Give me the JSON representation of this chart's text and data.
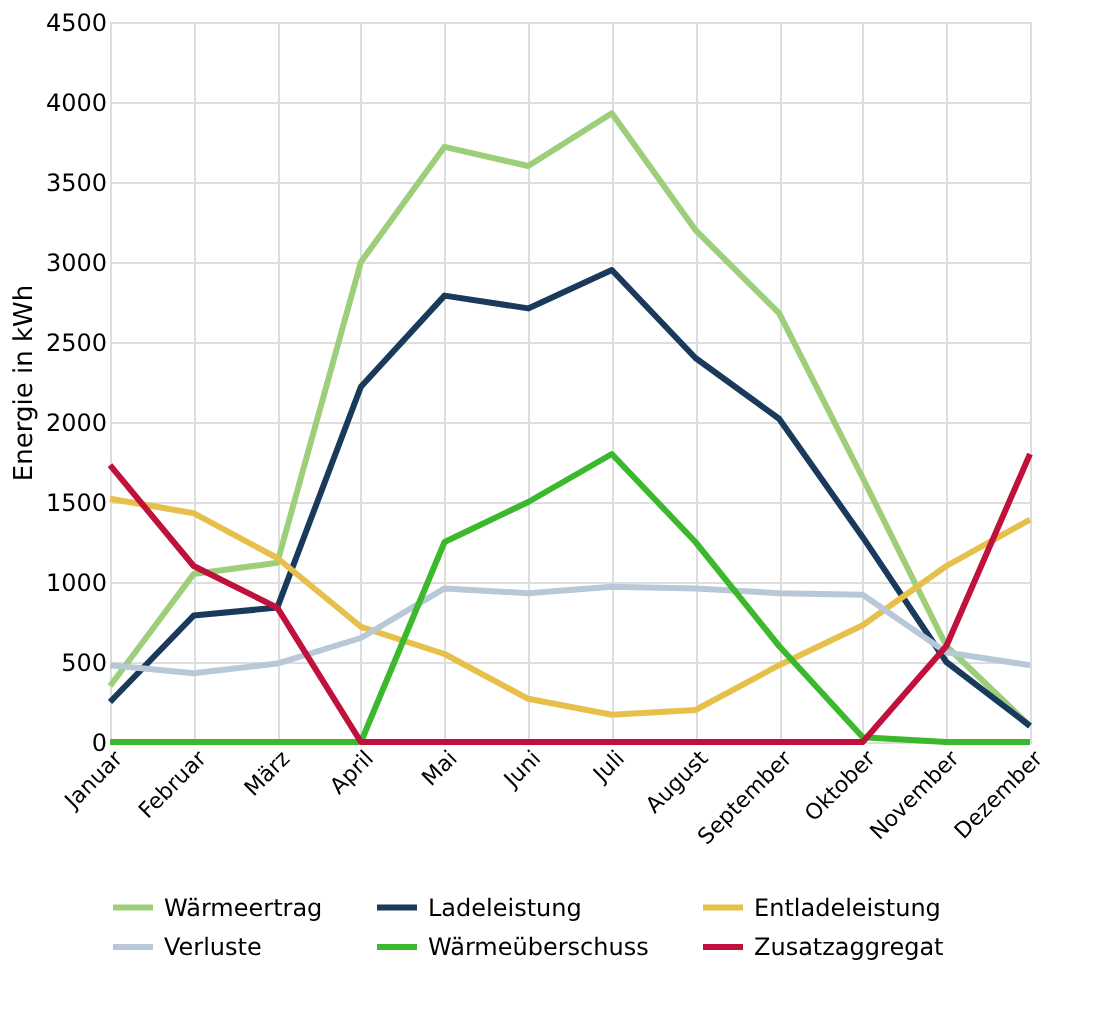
{
  "chart_data": {
    "type": "line",
    "ylabel": "Energie in kWh",
    "categories": [
      "Januar",
      "Februar",
      "März",
      "April",
      "Mai",
      "Juni",
      "Juli",
      "August",
      "September",
      "Oktober",
      "November",
      "Dezember"
    ],
    "ylim": [
      0,
      4500
    ],
    "yticks": [
      0,
      500,
      1000,
      1500,
      2000,
      2500,
      3000,
      3500,
      4000,
      4500
    ],
    "grid": true,
    "legend": "bottom",
    "line_style": "solid",
    "marker": "none",
    "series": [
      {
        "name": "Wärmeertrag",
        "color": "#9dcf7a",
        "values": [
          350,
          1050,
          1120,
          3000,
          3720,
          3600,
          3930,
          3200,
          2680,
          1650,
          600,
          100
        ]
      },
      {
        "name": "Ladeleistung",
        "color": "#1a3a5c",
        "values": [
          250,
          790,
          840,
          2220,
          2790,
          2710,
          2950,
          2400,
          2020,
          1280,
          500,
          100
        ]
      },
      {
        "name": "Entladeleistung",
        "color": "#e6c04a",
        "values": [
          1520,
          1430,
          1150,
          720,
          550,
          270,
          170,
          200,
          480,
          730,
          1100,
          1390
        ]
      },
      {
        "name": "Verluste",
        "color": "#b8c8d6",
        "values": [
          480,
          430,
          490,
          650,
          960,
          930,
          970,
          960,
          930,
          920,
          560,
          480
        ]
      },
      {
        "name": "Wärmeüberschuss",
        "color": "#3cb82c",
        "values": [
          0,
          0,
          0,
          0,
          1250,
          1500,
          1800,
          1250,
          600,
          30,
          0,
          0
        ]
      },
      {
        "name": "Zusatzaggregat",
        "color": "#c0103c",
        "values": [
          1730,
          1100,
          840,
          0,
          0,
          0,
          0,
          0,
          0,
          0,
          600,
          1800
        ]
      }
    ]
  }
}
